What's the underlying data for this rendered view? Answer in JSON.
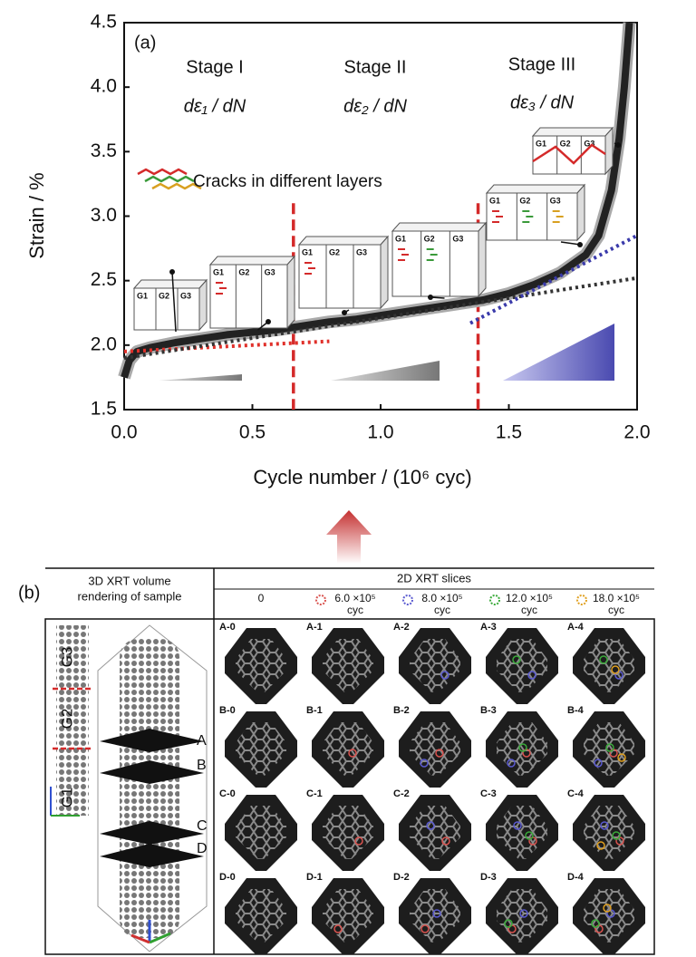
{
  "chart_data": {
    "type": "line",
    "panel_label": "(a)",
    "x_label": "Cycle number / (10⁶ cyc)",
    "y_label": "Strain / %",
    "xlim": [
      0,
      2
    ],
    "ylim": [
      1.5,
      4.5
    ],
    "xticks": [
      {
        "value": 0,
        "label": "0.0"
      },
      0.5,
      {
        "value": 1,
        "label": "1.0"
      },
      1.5,
      {
        "value": 2,
        "label": "2.0"
      }
    ],
    "yticks": [
      1.5,
      {
        "value": 2,
        "label": "2.0"
      },
      2.5,
      {
        "value": 3,
        "label": "3.0"
      },
      3.5,
      {
        "value": 4,
        "label": "4.0"
      },
      4.5
    ],
    "grid": false,
    "x": [
      0,
      0.02,
      0.05,
      0.1,
      0.2,
      0.3,
      0.4,
      0.5,
      0.6,
      0.7,
      0.8,
      0.9,
      1.0,
      1.1,
      1.2,
      1.3,
      1.4,
      1.5,
      1.6,
      1.7,
      1.8,
      1.85,
      1.9,
      1.93,
      1.95,
      1.97
    ],
    "series": [
      {
        "color": "#222222",
        "values": [
          1.75,
          1.88,
          1.95,
          1.98,
          2.02,
          2.05,
          2.08,
          2.1,
          2.12,
          2.15,
          2.18,
          2.2,
          2.23,
          2.26,
          2.29,
          2.32,
          2.35,
          2.4,
          2.47,
          2.56,
          2.7,
          2.85,
          3.2,
          3.6,
          4.0,
          4.5
        ]
      }
    ],
    "fit_lines": [
      {
        "color": "#e0302a",
        "x": [
          0,
          0.8
        ],
        "values": [
          1.95,
          2.03
        ]
      },
      {
        "color": "#333333",
        "x": [
          0,
          2.0
        ],
        "values": [
          1.9,
          2.52
        ]
      },
      {
        "color": "#3a3aaa",
        "x": [
          1.35,
          2.0
        ],
        "values": [
          2.17,
          2.85
        ]
      }
    ],
    "stage_boundaries": [
      0.66,
      1.38
    ],
    "boundary_color": "#d42a2a",
    "stages": [
      {
        "name": "Stage I",
        "rate": "dε₁ / dN"
      },
      {
        "name": "Stage II",
        "rate": "dε₂ / dN"
      },
      {
        "name": "Stage III",
        "rate": "dε₃ / dN"
      }
    ],
    "crack_note": "Cracks in different layers",
    "crack_colors": [
      "#d42a2a",
      "#3a9a3a",
      "#d8a020"
    ],
    "layer_labels": [
      "G1",
      "G2",
      "G3"
    ]
  },
  "panel_b": {
    "label": "(b)",
    "left_header": [
      "3D XRT volume",
      "rendering of sample"
    ],
    "right_header": "2D XRT slices",
    "columns": [
      {
        "label": "0"
      },
      {
        "label": "6.0 ×10⁵",
        "unit": "cyc",
        "color": "#d9534f"
      },
      {
        "label": "8.0 ×10⁵",
        "unit": "cyc",
        "color": "#5a5ad0"
      },
      {
        "label": "12.0 ×10⁵",
        "unit": "cyc",
        "color": "#3aaa3a"
      },
      {
        "label": "18.0 ×10⁵",
        "unit": "cyc",
        "color": "#e0a020"
      }
    ],
    "slice_labels": [
      [
        "A-0",
        "A-1",
        "A-2",
        "A-3",
        "A-4"
      ],
      [
        "B-0",
        "B-1",
        "B-2",
        "B-3",
        "B-4"
      ],
      [
        "C-0",
        "C-1",
        "C-2",
        "C-3",
        "C-4"
      ],
      [
        "D-0",
        "D-1",
        "D-2",
        "D-3",
        "D-4"
      ]
    ],
    "layers": [
      "G3",
      "G2",
      "G1"
    ],
    "sections": [
      "A",
      "B",
      "C",
      "D"
    ]
  }
}
